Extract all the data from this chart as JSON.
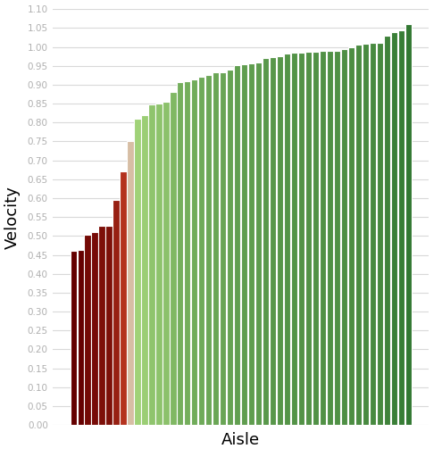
{
  "xlabel": "Aisle",
  "ylabel": "Velocity",
  "ylim": [
    0,
    1.1
  ],
  "yticks": [
    0.0,
    0.05,
    0.1,
    0.15,
    0.2,
    0.25,
    0.3,
    0.35,
    0.4,
    0.45,
    0.5,
    0.55,
    0.6,
    0.65,
    0.7,
    0.75,
    0.8,
    0.85,
    0.9,
    0.95,
    1.0,
    1.05,
    1.1
  ],
  "values": [
    0.46,
    0.464,
    0.503,
    0.51,
    0.527,
    0.528,
    0.596,
    0.67,
    0.75,
    0.81,
    0.82,
    0.848,
    0.85,
    0.855,
    0.882,
    0.906,
    0.91,
    0.915,
    0.92,
    0.927,
    0.932,
    0.933,
    0.94,
    0.951,
    0.955,
    0.957,
    0.96,
    0.97,
    0.972,
    0.975,
    0.982,
    0.985,
    0.986,
    0.987,
    0.988,
    0.989,
    0.99,
    0.99,
    0.995,
    1.0,
    1.005,
    1.008,
    1.01,
    1.012,
    1.03,
    1.04,
    1.045,
    1.06
  ],
  "background_color": "#ffffff",
  "grid_color": "#d9d9d9",
  "bar_edge_color": "#ffffff",
  "bar_edge_width": 0.8,
  "color_stops": {
    "v0": 0.46,
    "v_mid_low": 0.67,
    "v_neutral": 0.75,
    "v_mid_high": 0.81,
    "v_max": 1.06,
    "c0": [
      100,
      0,
      0
    ],
    "c_low_mid": [
      180,
      50,
      30
    ],
    "c_neutral": [
      215,
      190,
      165
    ],
    "c_mid_high": [
      160,
      210,
      120
    ],
    "c_max": [
      50,
      120,
      50
    ]
  }
}
